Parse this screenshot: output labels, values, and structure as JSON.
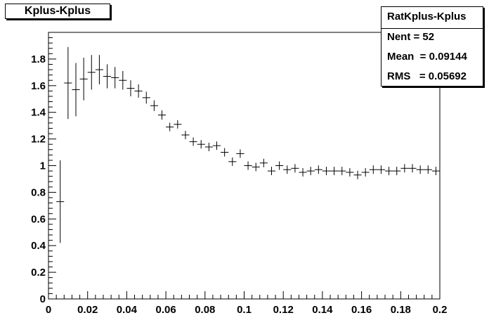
{
  "chart_data": {
    "type": "scatter",
    "title": "Kplus-Kplus",
    "xlabel": "",
    "ylabel": "",
    "xlim": [
      0,
      0.2
    ],
    "ylim": [
      0,
      2.0
    ],
    "x_ticks": [
      0,
      0.02,
      0.04,
      0.06,
      0.08,
      0.1,
      0.12,
      0.14,
      0.16,
      0.18,
      0.2
    ],
    "x_tick_labels": [
      "0",
      "0.02",
      "0.04",
      "0.06",
      "0.08",
      "0.1",
      "0.12",
      "0.14",
      "0.16",
      "0.18",
      "0.2"
    ],
    "y_ticks": [
      0,
      0.2,
      0.4,
      0.6,
      0.8,
      1,
      1.2,
      1.4,
      1.6,
      1.8
    ],
    "y_tick_labels": [
      "0",
      "0.2",
      "0.4",
      "0.6",
      "0.8",
      "1",
      "1.2",
      "1.4",
      "1.6",
      "1.8"
    ],
    "bin_width": 0.004,
    "x": [
      0.006,
      0.01,
      0.014,
      0.018,
      0.022,
      0.026,
      0.03,
      0.034,
      0.038,
      0.042,
      0.046,
      0.05,
      0.054,
      0.058,
      0.062,
      0.066,
      0.07,
      0.074,
      0.078,
      0.082,
      0.086,
      0.09,
      0.094,
      0.098,
      0.102,
      0.106,
      0.11,
      0.114,
      0.118,
      0.122,
      0.126,
      0.13,
      0.134,
      0.138,
      0.142,
      0.146,
      0.15,
      0.154,
      0.158,
      0.162,
      0.166,
      0.17,
      0.174,
      0.178,
      0.182,
      0.186,
      0.19,
      0.194,
      0.198
    ],
    "y": [
      0.73,
      1.62,
      1.57,
      1.65,
      1.7,
      1.72,
      1.67,
      1.66,
      1.64,
      1.58,
      1.56,
      1.51,
      1.45,
      1.38,
      1.29,
      1.31,
      1.23,
      1.18,
      1.16,
      1.14,
      1.15,
      1.1,
      1.03,
      1.09,
      1.0,
      0.99,
      1.02,
      0.96,
      1.0,
      0.97,
      0.98,
      0.95,
      0.96,
      0.97,
      0.96,
      0.96,
      0.96,
      0.95,
      0.93,
      0.95,
      0.97,
      0.97,
      0.96,
      0.96,
      0.98,
      0.98,
      0.97,
      0.97,
      0.96
    ],
    "y_err": [
      0.31,
      0.27,
      0.2,
      0.16,
      0.13,
      0.11,
      0.09,
      0.08,
      0.07,
      0.06,
      0.05,
      0.045,
      0.04,
      0.035,
      0.03,
      0.03,
      0.025,
      0.02,
      0.02,
      0.02,
      0.02,
      0.015,
      0.015,
      0.015,
      0.015,
      0.01,
      0.01,
      0.01,
      0.01,
      0.01,
      0.01,
      0.01,
      0.01,
      0.01,
      0.01,
      0.01,
      0.01,
      0.01,
      0.01,
      0.01,
      0.01,
      0.01,
      0.01,
      0.01,
      0.01,
      0.01,
      0.01,
      0.01,
      0.01
    ],
    "grid": false,
    "legend": "none"
  },
  "stats": {
    "name": "RatKplus-Kplus",
    "entries": "Nent = 52",
    "mean": "Mean  = 0.09144",
    "rms": "RMS   = 0.05692"
  },
  "colors": {
    "marker": "#000000",
    "frame": "#000000",
    "background": "#ffffff"
  }
}
